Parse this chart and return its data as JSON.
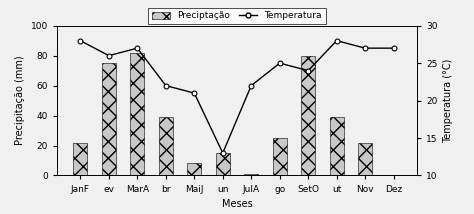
{
  "months": [
    "JanF",
    "ev",
    "MarA",
    "br",
    "MaiJ",
    "un",
    "JulA",
    "go",
    "SetO",
    "ut",
    "Nov",
    "Dez"
  ],
  "precipitation": [
    22,
    75,
    82,
    39,
    8,
    15,
    1,
    25,
    80,
    39,
    22,
    0
  ],
  "temperature": [
    28,
    26,
    27,
    22,
    21,
    13,
    22,
    25,
    24,
    28,
    27,
    27
  ],
  "bar_color": "#c8c8c8",
  "bar_hatch": "xx",
  "line_color": "#000000",
  "marker": "o",
  "marker_size": 3.5,
  "marker_facecolor": "#ffffff",
  "marker_edgecolor": "#000000",
  "xlabel": "Meses",
  "ylabel_left": "Precipitação (mm)",
  "ylabel_right": "Temperatura (°C)",
  "ylim_left": [
    0,
    100
  ],
  "ylim_right": [
    10,
    30
  ],
  "yticks_left": [
    0,
    20,
    40,
    60,
    80,
    100
  ],
  "yticks_right": [
    10,
    15,
    20,
    25,
    30
  ],
  "legend_precip": "Preciptação",
  "legend_temp": "Temperatura",
  "background_color": "#f0f0f0",
  "axis_fontsize": 7,
  "tick_fontsize": 6.5,
  "bar_width": 0.5
}
